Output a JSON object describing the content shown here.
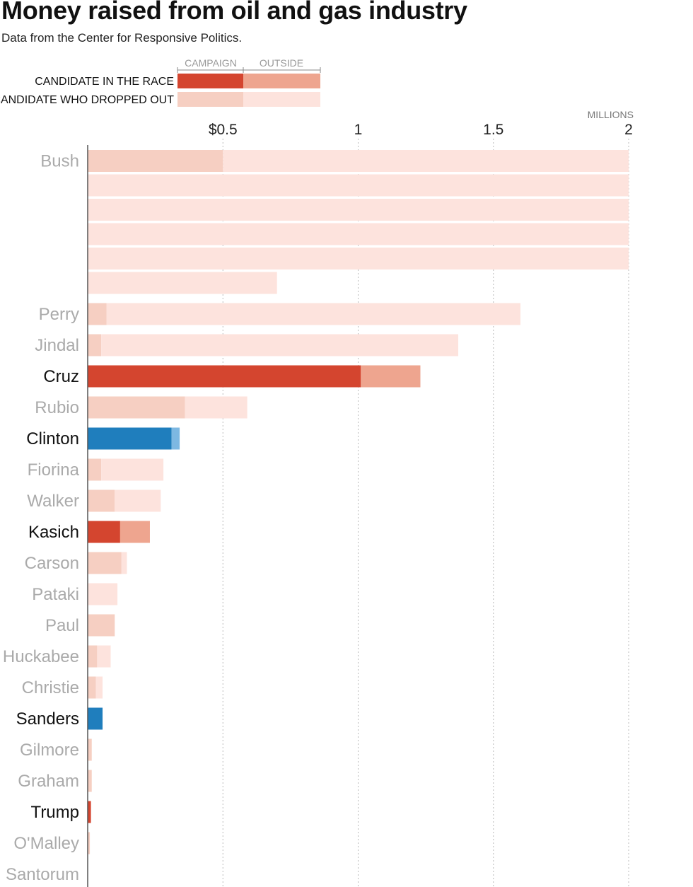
{
  "header": {
    "title": "Money raised from oil and gas industry",
    "subtitle": "Data from the Center for Responsive Politics."
  },
  "legend": {
    "col_campaign": "CAMPAIGN",
    "col_outside": "OUTSIDE",
    "row_in_race": "CANDIDATE IN THE RACE",
    "row_dropped": "CANDIDATE WHO DROPPED OUT"
  },
  "colors": {
    "rep_in_campaign": "#d4452f",
    "rep_in_outside": "#eea58f",
    "dem_in_campaign": "#1f7ebd",
    "dem_in_outside": "#7db8e2",
    "dropped_campaign": "#f6cfc2",
    "dropped_outside": "#fde3dd",
    "label_in_race": "#111111",
    "label_dropped": "#aaaaaa"
  },
  "chart_data": {
    "type": "bar",
    "orientation": "horizontal",
    "stacked": true,
    "title": "Money raised from oil and gas industry",
    "units_label": "MILLIONS",
    "xlim": [
      0,
      2
    ],
    "ticks": [
      {
        "value": 0.5,
        "label": "$0.5"
      },
      {
        "value": 1,
        "label": "1"
      },
      {
        "value": 1.5,
        "label": "1.5"
      },
      {
        "value": 2,
        "label": "2"
      }
    ],
    "bush_wrap_rows": 6,
    "candidates": [
      {
        "name": "Bush",
        "party": "rep",
        "in_race": false,
        "campaign": 0.5,
        "outside": 10.2
      },
      {
        "name": "Perry",
        "party": "rep",
        "in_race": false,
        "campaign": 0.07,
        "outside": 1.53
      },
      {
        "name": "Jindal",
        "party": "rep",
        "in_race": false,
        "campaign": 0.05,
        "outside": 1.32
      },
      {
        "name": "Cruz",
        "party": "rep",
        "in_race": true,
        "campaign": 1.01,
        "outside": 0.22
      },
      {
        "name": "Rubio",
        "party": "rep",
        "in_race": false,
        "campaign": 0.36,
        "outside": 0.23
      },
      {
        "name": "Clinton",
        "party": "dem",
        "in_race": true,
        "campaign": 0.31,
        "outside": 0.03
      },
      {
        "name": "Fiorina",
        "party": "rep",
        "in_race": false,
        "campaign": 0.05,
        "outside": 0.23
      },
      {
        "name": "Walker",
        "party": "rep",
        "in_race": false,
        "campaign": 0.1,
        "outside": 0.17
      },
      {
        "name": "Kasich",
        "party": "rep",
        "in_race": true,
        "campaign": 0.12,
        "outside": 0.11
      },
      {
        "name": "Carson",
        "party": "rep",
        "in_race": false,
        "campaign": 0.125,
        "outside": 0.02
      },
      {
        "name": "Pataki",
        "party": "rep",
        "in_race": false,
        "campaign": 0.0,
        "outside": 0.11
      },
      {
        "name": "Paul",
        "party": "rep",
        "in_race": false,
        "campaign": 0.1,
        "outside": 0.0
      },
      {
        "name": "Huckabee",
        "party": "rep",
        "in_race": false,
        "campaign": 0.035,
        "outside": 0.05
      },
      {
        "name": "Christie",
        "party": "rep",
        "in_race": false,
        "campaign": 0.03,
        "outside": 0.025
      },
      {
        "name": "Sanders",
        "party": "dem",
        "in_race": true,
        "campaign": 0.055,
        "outside": 0.0
      },
      {
        "name": "Gilmore",
        "party": "rep",
        "in_race": false,
        "campaign": 0.015,
        "outside": 0.0
      },
      {
        "name": "Graham",
        "party": "rep",
        "in_race": false,
        "campaign": 0.015,
        "outside": 0.0
      },
      {
        "name": "Trump",
        "party": "rep",
        "in_race": true,
        "campaign": 0.012,
        "outside": 0.0
      },
      {
        "name": "O'Malley",
        "party": "dem",
        "in_race": false,
        "campaign": 0.008,
        "outside": 0.0
      },
      {
        "name": "Santorum",
        "party": "rep",
        "in_race": false,
        "campaign": 0.0,
        "outside": 0.0
      }
    ]
  }
}
